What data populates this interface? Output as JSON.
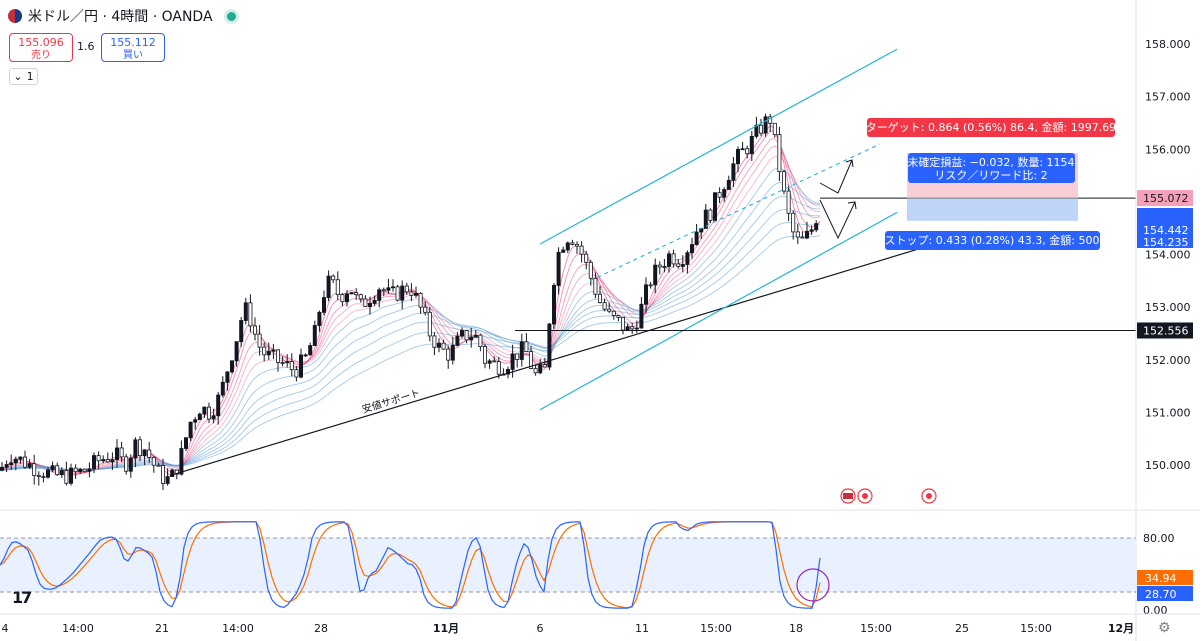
{
  "header": {
    "title": "米ドル／円 · 4時間 · OANDA",
    "sell_price": "155.096",
    "sell_label": "売り",
    "spread": "1.6",
    "buy_price": "155.112",
    "buy_label": "買い",
    "lots_value": "1"
  },
  "colors": {
    "up_candle": "#131722",
    "down_candle": "#ffffff",
    "channel": "#22b5d3",
    "support": "#131722",
    "target_bg": "#f23645",
    "stop_bg": "#2962ff",
    "stoch_k": "#2962ff",
    "stoch_d": "#ff6d00",
    "ribbon_fast": "#e91e63",
    "ribbon_slow": "#5b9bd5"
  },
  "chart_data": {
    "type": "candlestick",
    "symbol": "USDJPY",
    "timeframe": "4H",
    "ylim": [
      149.6,
      158.3
    ],
    "yticks": [
      "158.000",
      "157.000",
      "156.000",
      "155.000",
      "154.000",
      "153.000",
      "152.000",
      "151.000",
      "150.000"
    ],
    "xticks": [
      "4",
      "14:00",
      "21",
      "14:00",
      "28",
      "11月",
      "6",
      "11",
      "15:00",
      "18",
      "15:00",
      "25",
      "15:00",
      "12月"
    ],
    "price_path": [
      [
        0,
        149.9
      ],
      [
        10,
        150.2
      ],
      [
        20,
        150.1
      ],
      [
        30,
        150.0
      ],
      [
        40,
        149.9
      ],
      [
        55,
        149.8
      ],
      [
        70,
        149.8
      ],
      [
        85,
        149.9
      ],
      [
        100,
        150.1
      ],
      [
        115,
        150.2
      ],
      [
        125,
        150.0
      ],
      [
        135,
        150.4
      ],
      [
        145,
        150.3
      ],
      [
        160,
        149.8
      ],
      [
        170,
        149.7
      ],
      [
        180,
        150.1
      ],
      [
        190,
        150.8
      ],
      [
        200,
        151.1
      ],
      [
        210,
        151.0
      ],
      [
        220,
        151.3
      ],
      [
        230,
        152.0
      ],
      [
        238,
        152.5
      ],
      [
        244,
        153.0
      ],
      [
        250,
        152.8
      ],
      [
        258,
        152.3
      ],
      [
        265,
        152.1
      ],
      [
        275,
        152.0
      ],
      [
        285,
        151.9
      ],
      [
        295,
        151.8
      ],
      [
        305,
        152.0
      ],
      [
        315,
        152.5
      ],
      [
        322,
        153.2
      ],
      [
        330,
        153.5
      ],
      [
        340,
        153.2
      ],
      [
        350,
        153.4
      ],
      [
        360,
        153.0
      ],
      [
        370,
        153.2
      ],
      [
        380,
        153.4
      ],
      [
        390,
        153.2
      ],
      [
        400,
        153.3
      ],
      [
        410,
        153.4
      ],
      [
        420,
        153.0
      ],
      [
        430,
        152.5
      ],
      [
        440,
        152.2
      ],
      [
        450,
        152.1
      ],
      [
        460,
        152.4
      ],
      [
        470,
        152.5
      ],
      [
        478,
        152.4
      ],
      [
        485,
        152.0
      ],
      [
        495,
        151.9
      ],
      [
        505,
        151.9
      ],
      [
        515,
        152.1
      ],
      [
        525,
        152.2
      ],
      [
        535,
        151.7
      ],
      [
        545,
        151.8
      ],
      [
        550,
        152.9
      ],
      [
        556,
        153.9
      ],
      [
        562,
        154.2
      ],
      [
        570,
        154.4
      ],
      [
        580,
        154.1
      ],
      [
        590,
        153.6
      ],
      [
        600,
        153.1
      ],
      [
        610,
        152.8
      ],
      [
        620,
        152.7
      ],
      [
        630,
        152.5
      ],
      [
        640,
        152.9
      ],
      [
        650,
        153.5
      ],
      [
        660,
        153.8
      ],
      [
        670,
        154.0
      ],
      [
        680,
        153.9
      ],
      [
        690,
        154.2
      ],
      [
        700,
        154.6
      ],
      [
        710,
        154.8
      ],
      [
        720,
        155.2
      ],
      [
        730,
        155.6
      ],
      [
        740,
        155.9
      ],
      [
        750,
        156.1
      ],
      [
        760,
        156.4
      ],
      [
        770,
        156.6
      ],
      [
        778,
        155.8
      ],
      [
        785,
        155.0
      ],
      [
        790,
        154.6
      ],
      [
        795,
        154.3
      ],
      [
        800,
        154.2
      ],
      [
        810,
        154.4
      ],
      [
        818,
        154.8
      ]
    ],
    "support_line": [
      [
        170,
        149.8
      ],
      [
        935,
        154.2
      ]
    ],
    "channel_upper": [
      [
        540,
        154.2
      ],
      [
        897,
        157.9
      ]
    ],
    "channel_lower": [
      [
        540,
        151.05
      ],
      [
        897,
        154.8
      ]
    ],
    "channel_mid": [
      [
        590,
        153.5
      ],
      [
        880,
        156.1
      ]
    ],
    "horizontal_lines": [
      {
        "price": 155.072,
        "label": "155.072",
        "from_x": 820
      },
      {
        "price": 152.556,
        "label": "152.556",
        "from_x": 515
      }
    ],
    "price_labels": [
      {
        "value": "155.072",
        "bg": "#f7a1b8"
      },
      {
        "value": "154.442",
        "bg": "#2962ff"
      },
      {
        "value": "154.235",
        "bg": "#2962ff"
      }
    ],
    "annotation": "安値サポート",
    "position_tool": {
      "entry": 155.07,
      "target": 155.93,
      "stop": 154.64,
      "target_label": "ターゲット: 0.864 (0.56%) 86.4, 金額: 1997.69",
      "stop_label": "ストップ: 0.433 (0.28%) 43.3, 金額: 500",
      "pnl_label": "未確定損益: −0.032, 数量: 1154",
      "rr_label": "リスク／リワード比: 2"
    },
    "stochastic": {
      "ylim": [
        0,
        100
      ],
      "levels": [
        80,
        20
      ],
      "yticks": [
        "80.00",
        "0.00"
      ],
      "last_values": [
        "34.94",
        "28.70"
      ]
    }
  }
}
